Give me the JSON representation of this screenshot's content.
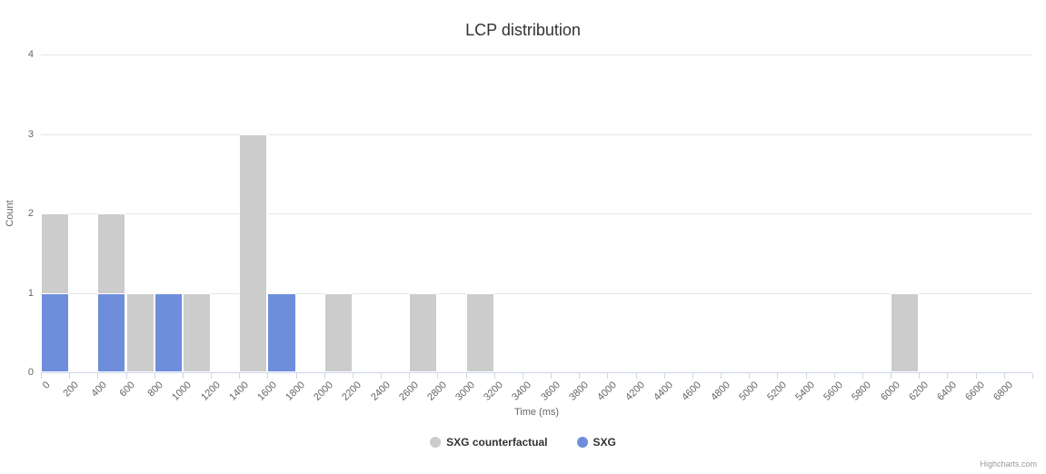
{
  "chart_data": {
    "type": "bar",
    "title": "LCP distribution",
    "xlabel": "Time (ms)",
    "ylabel": "Count",
    "ylim": [
      0,
      4
    ],
    "y_ticks": [
      0,
      1,
      2,
      3,
      4
    ],
    "grid": true,
    "legend_position": "bottom-center",
    "bars_overlap": true,
    "categories": [
      "0",
      "200",
      "400",
      "600",
      "800",
      "1000",
      "1200",
      "1400",
      "1600",
      "1800",
      "2000",
      "2200",
      "2400",
      "2600",
      "2800",
      "3000",
      "3200",
      "3400",
      "3600",
      "3800",
      "4000",
      "4200",
      "4400",
      "4600",
      "4800",
      "5000",
      "5200",
      "5400",
      "5600",
      "5800",
      "6000",
      "6200",
      "6400",
      "6600",
      "6800"
    ],
    "series": [
      {
        "name": "SXG counterfactual",
        "color": "#cccccc",
        "values": [
          2,
          0,
          2,
          1,
          0,
          1,
          0,
          3,
          0,
          0,
          1,
          0,
          0,
          1,
          0,
          1,
          0,
          0,
          0,
          0,
          0,
          0,
          0,
          0,
          0,
          0,
          0,
          0,
          0,
          0,
          1,
          0,
          0,
          0,
          0
        ]
      },
      {
        "name": "SXG",
        "color": "#6e8edb",
        "values": [
          1,
          0,
          1,
          0,
          1,
          0,
          0,
          0,
          1,
          0,
          0,
          0,
          0,
          0,
          0,
          0,
          0,
          0,
          0,
          0,
          0,
          0,
          0,
          0,
          0,
          0,
          0,
          0,
          0,
          0,
          0,
          0,
          0,
          0,
          0
        ]
      }
    ]
  },
  "credits": {
    "text": "Highcharts.com"
  }
}
